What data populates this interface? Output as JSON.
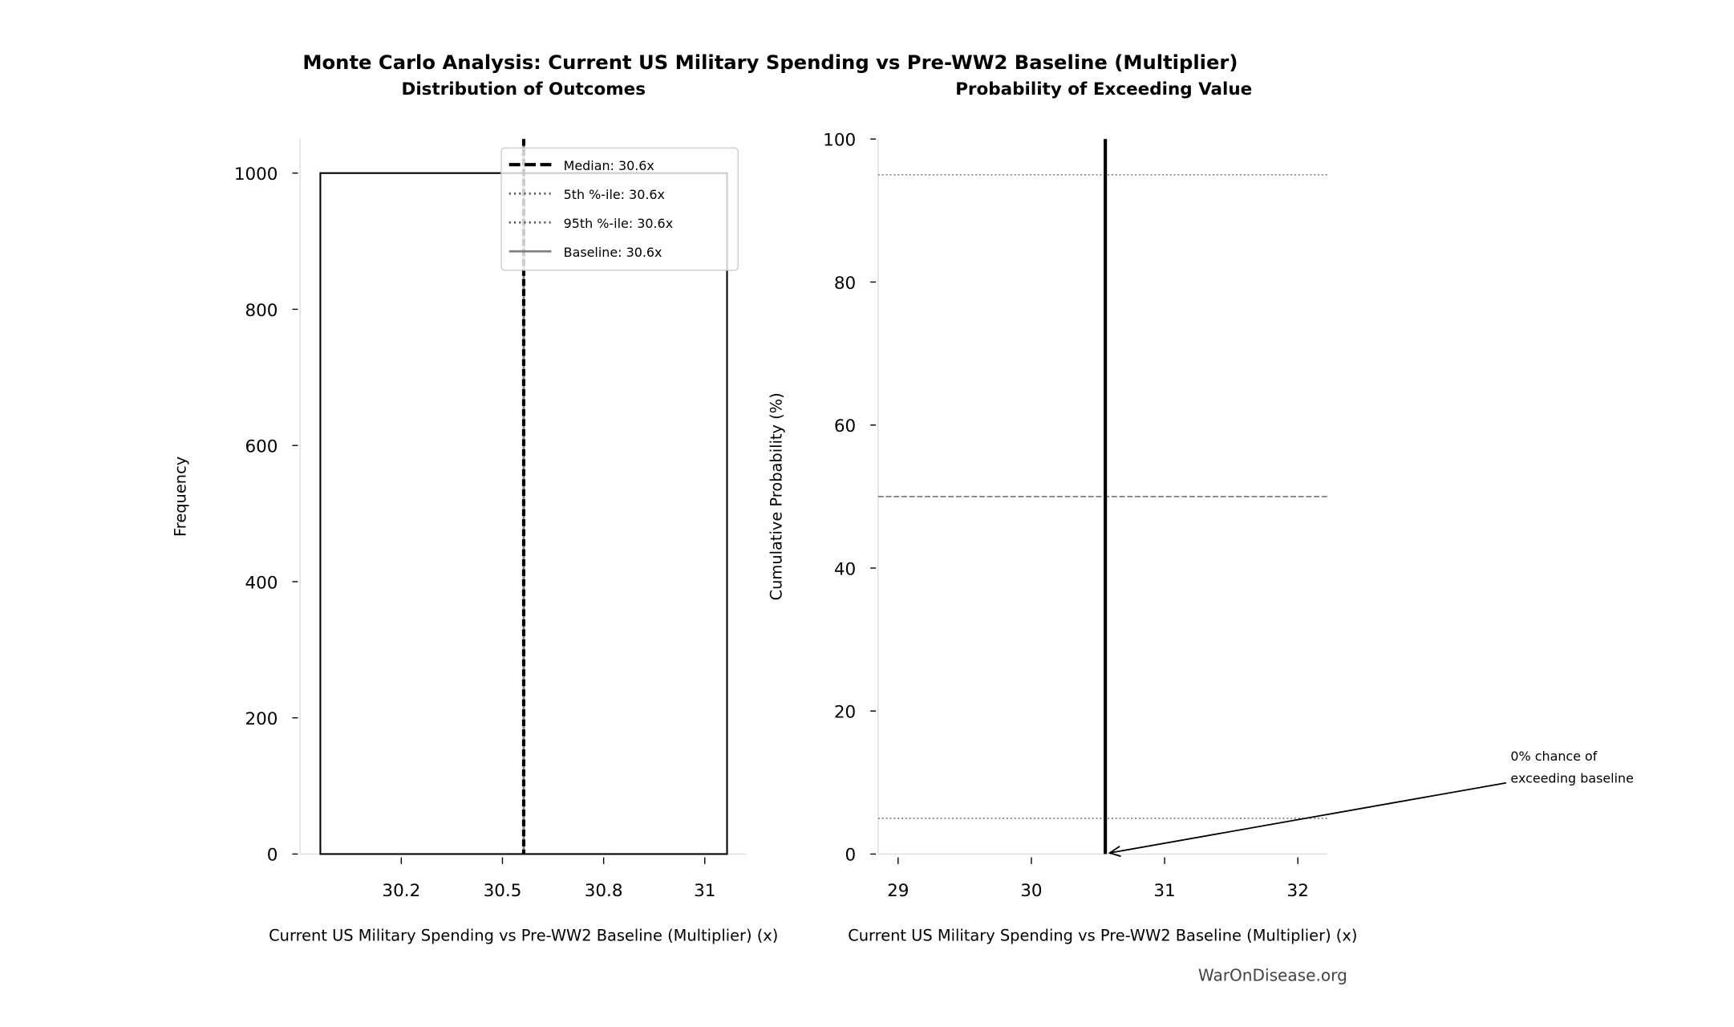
{
  "title": "Monte Carlo Analysis: Current US Military Spending vs Pre-WW2 Baseline (Multiplier)",
  "watermark": "WarOnDisease.org",
  "chart_data": [
    {
      "type": "bar",
      "title": "Distribution of Outcomes",
      "xlabel": "Current US Military Spending vs Pre-WW2 Baseline (Multiplier) (x)",
      "ylabel": "Frequency",
      "xlim": [
        29.9,
        31.225
      ],
      "ylim": [
        0,
        1050
      ],
      "xticks": [
        30.2,
        30.5,
        30.8,
        31.1
      ],
      "xtick_labels": [
        "30.2",
        "30.5",
        "30.8",
        "31"
      ],
      "yticks": [
        0,
        200,
        400,
        600,
        800,
        1000
      ],
      "ytick_labels": [
        "0",
        "200",
        "400",
        "600",
        "800",
        "1000"
      ],
      "bins": [
        {
          "x0": 29.96,
          "x1": 31.166,
          "count": 1000
        }
      ],
      "vlines": [
        {
          "name": "Median: 30.6x",
          "x": 30.563,
          "style": "dashed",
          "color": "#000000"
        },
        {
          "name": "5th %-ile: 30.6x",
          "x": 30.563,
          "style": "dotted",
          "color": "#555555"
        },
        {
          "name": "95th %-ile: 30.6x",
          "x": 30.563,
          "style": "dotted",
          "color": "#555555"
        },
        {
          "name": "Baseline: 30.6x",
          "x": 30.563,
          "style": "solid",
          "color": "#808080"
        }
      ],
      "legend": "top-right",
      "grid": false
    },
    {
      "type": "line",
      "title": "Probability of Exceeding Value",
      "xlabel": "Current US Military Spending vs Pre-WW2 Baseline (Multiplier) (x)",
      "ylabel": "Cumulative Probability (%)",
      "xlim": [
        28.85,
        32.22
      ],
      "ylim": [
        0,
        100
      ],
      "xticks": [
        29,
        30,
        31,
        32
      ],
      "xtick_labels": [
        "29",
        "30",
        "31",
        "32"
      ],
      "yticks": [
        0,
        20,
        40,
        60,
        80,
        100
      ],
      "ytick_labels": [
        "0",
        "20",
        "40",
        "60",
        "80",
        "100"
      ],
      "series": [
        {
          "x": [
            30.555,
            30.555
          ],
          "y": [
            0,
            100
          ],
          "color": "#000000"
        }
      ],
      "hlines": [
        {
          "y": 95,
          "style": "dotted",
          "color": "#888888"
        },
        {
          "y": 50,
          "style": "dashed",
          "color": "#808080"
        },
        {
          "y": 5,
          "style": "dotted",
          "color": "#888888"
        }
      ],
      "annotation": {
        "text": [
          "0% chance of",
          "exceeding baseline"
        ],
        "x": 30.555,
        "y": 0
      },
      "grid": false
    }
  ]
}
